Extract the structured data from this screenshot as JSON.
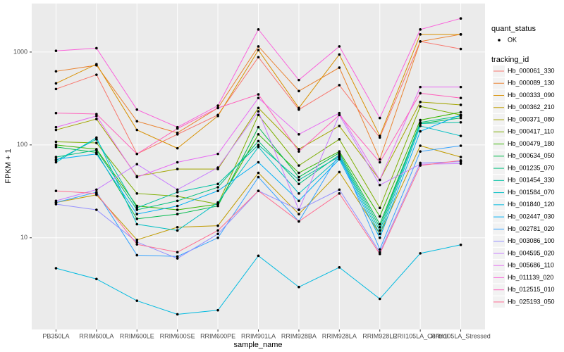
{
  "chart_data": {
    "type": "line",
    "log_scale": true,
    "grid": true,
    "x_label": "sample_name",
    "y_label": "FPKM + 1",
    "categories": [
      "PB350LA",
      "RRIM600LA",
      "RRIM600LE",
      "RRIM600SE",
      "RRIM600PE",
      "RRIM901LA",
      "RRIM928BA",
      "RRIM928LA",
      "RRIM928LE",
      "RRII105LA_Control",
      "RRII105LA_Stressed"
    ],
    "ylim": [
      1.03,
      3330
    ],
    "yticks": [
      10,
      100,
      1000
    ],
    "shape_legend_title": "quant_status",
    "shape_legend_items": [
      "OK"
    ],
    "legend_title": "tracking_id",
    "series": [
      {
        "name": "Hb_000061_330",
        "color": "#F8766D",
        "values": [
          400,
          570,
          80,
          130,
          210,
          880,
          240,
          440,
          120,
          1300,
          1080
        ]
      },
      {
        "name": "Hb_000089_130",
        "color": "#EA8331",
        "values": [
          620,
          720,
          180,
          135,
          250,
          1150,
          380,
          680,
          70,
          1300,
          1550
        ]
      },
      {
        "name": "Hb_000333_090",
        "color": "#D89000",
        "values": [
          460,
          740,
          145,
          92,
          205,
          1050,
          250,
          940,
          125,
          1550,
          1550
        ]
      },
      {
        "name": "Hb_000362_210",
        "color": "#C09B00",
        "values": [
          24,
          29,
          9.5,
          13,
          13.5,
          50,
          18,
          51,
          11,
          98,
          74
        ]
      },
      {
        "name": "Hb_000371_080",
        "color": "#A3A500",
        "values": [
          145,
          190,
          46,
          55,
          55,
          250,
          90,
          160,
          42,
          290,
          270
        ]
      },
      {
        "name": "Hb_000417_110",
        "color": "#7CAE00",
        "values": [
          108,
          105,
          30,
          28,
          23,
          210,
          60,
          115,
          21,
          260,
          210
        ]
      },
      {
        "name": "Hb_000479_180",
        "color": "#39B600",
        "values": [
          100,
          90,
          22,
          20,
          23,
          130,
          50,
          85,
          17,
          185,
          225
        ]
      },
      {
        "name": "Hb_000634_050",
        "color": "#00BB4E",
        "values": [
          95,
          83,
          16,
          18,
          22,
          155,
          45,
          82,
          14,
          170,
          195
        ]
      },
      {
        "name": "Hb_001235_070",
        "color": "#00BF7D",
        "values": [
          74,
          88,
          20,
          25,
          35,
          110,
          38,
          78,
          13,
          175,
          205
        ]
      },
      {
        "name": "Hb_001454_330",
        "color": "#00C1A3",
        "values": [
          68,
          115,
          21,
          31,
          38,
          100,
          42,
          75,
          12,
          170,
          175
        ]
      },
      {
        "name": "Hb_001584_070",
        "color": "#00BFC4",
        "values": [
          65,
          120,
          14,
          12,
          24,
          95,
          30,
          73,
          11,
          160,
          125
        ]
      },
      {
        "name": "Hb_001840_120",
        "color": "#00BAE0",
        "values": [
          4.7,
          3.6,
          2.1,
          1.5,
          1.66,
          6.4,
          2.95,
          4.8,
          2.2,
          6.8,
          8.4
        ]
      },
      {
        "name": "Hb_002447_030",
        "color": "#00B0F6",
        "values": [
          70,
          80,
          18,
          22,
          32,
          65,
          25,
          70,
          10,
          140,
          210
        ]
      },
      {
        "name": "Hb_002781_020",
        "color": "#35A2FF",
        "values": [
          24,
          31,
          6.5,
          6.3,
          10,
          45,
          15,
          80,
          7.5,
          85,
          98
        ]
      },
      {
        "name": "Hb_003086_100",
        "color": "#9590FF",
        "values": [
          23,
          20,
          9,
          6,
          11,
          32,
          20,
          33,
          7,
          64,
          66
        ]
      },
      {
        "name": "Hb_004595_020",
        "color": "#C77CFF",
        "values": [
          25,
          33,
          62,
          33,
          57,
          230,
          20,
          210,
          37,
          62,
          63
        ]
      },
      {
        "name": "Hb_005686_110",
        "color": "#E76BF3",
        "values": [
          155,
          205,
          45,
          65,
          80,
          320,
          130,
          220,
          42,
          420,
          420
        ]
      },
      {
        "name": "Hb_011139_020",
        "color": "#FA62DB",
        "values": [
          1030,
          1100,
          240,
          155,
          265,
          1750,
          500,
          1150,
          195,
          1750,
          2300
        ]
      },
      {
        "name": "Hb_012515_010",
        "color": "#FF62BC",
        "values": [
          220,
          215,
          80,
          150,
          250,
          350,
          85,
          210,
          65,
          360,
          320
        ]
      },
      {
        "name": "Hb_025193_050",
        "color": "#FF6C91",
        "values": [
          32,
          30,
          8.5,
          7,
          12,
          32,
          15,
          30,
          6.7,
          60,
          68
        ]
      }
    ]
  }
}
